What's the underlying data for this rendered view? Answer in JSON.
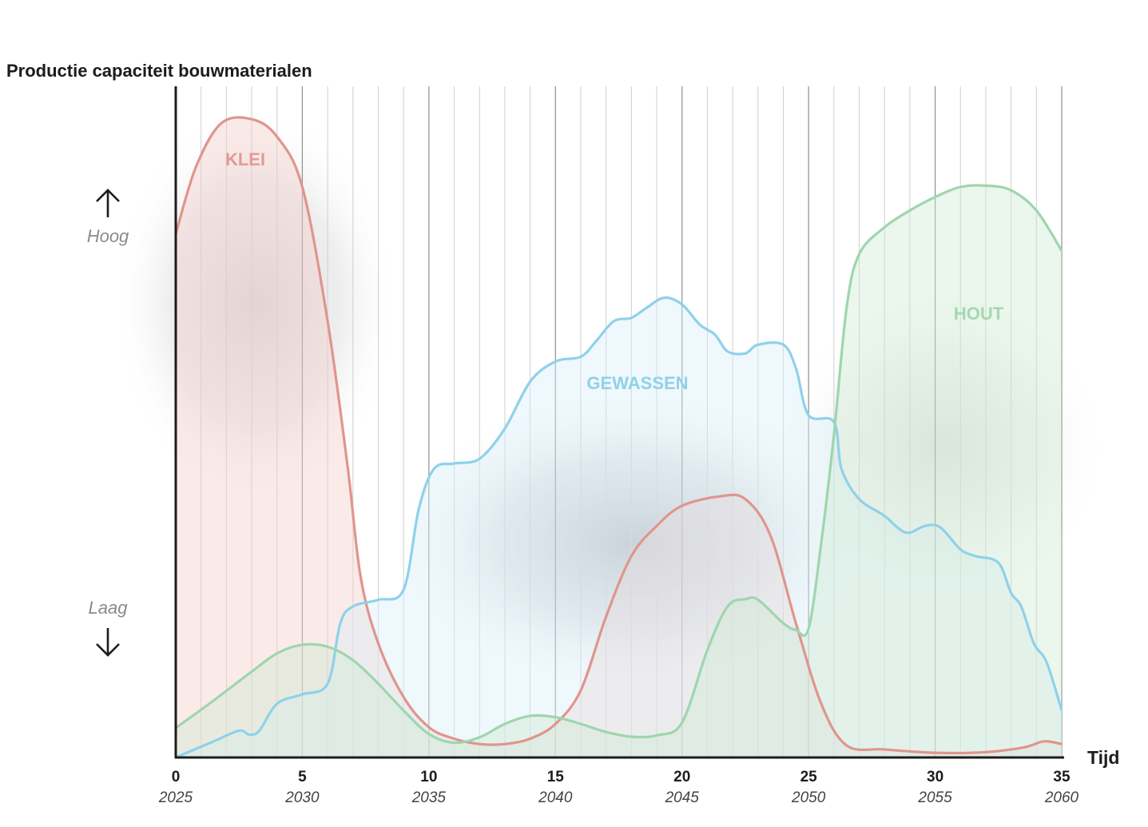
{
  "chart_data": {
    "type": "area",
    "title": "Productie capaciteit bouwmaterialen",
    "xlabel": "Tijd",
    "ylabel": "",
    "xlim": [
      0,
      35
    ],
    "ylim": [
      0,
      100
    ],
    "grid": "vertical",
    "x_ticks": [
      0,
      5,
      10,
      15,
      20,
      25,
      30,
      35
    ],
    "x_tick_years": [
      "2025",
      "2030",
      "2035",
      "2040",
      "2045",
      "2050",
      "2055",
      "2060"
    ],
    "y_level_labels": {
      "high": "Hoog",
      "low": "Laag"
    },
    "series": [
      {
        "name": "KLEI",
        "color": "#e0958c",
        "fill": "#f3cfcb",
        "points": [
          [
            0,
            78
          ],
          [
            0.8,
            88
          ],
          [
            1.8,
            94.5
          ],
          [
            3,
            95.1
          ],
          [
            4,
            92.5
          ],
          [
            5,
            85
          ],
          [
            6,
            65
          ],
          [
            6.8,
            43
          ],
          [
            7.3,
            27
          ],
          [
            8,
            17
          ],
          [
            9,
            9
          ],
          [
            10,
            4.5
          ],
          [
            11,
            2.8
          ],
          [
            12,
            2
          ],
          [
            13,
            2
          ],
          [
            14,
            2.8
          ],
          [
            15,
            5
          ],
          [
            16,
            10
          ],
          [
            17,
            21
          ],
          [
            18,
            30
          ],
          [
            19,
            34.5
          ],
          [
            20,
            37.5
          ],
          [
            21.5,
            38.9
          ],
          [
            22.5,
            38.5
          ],
          [
            23.5,
            33
          ],
          [
            24.5,
            20
          ],
          [
            25.5,
            8
          ],
          [
            26.5,
            1.8
          ],
          [
            28,
            1.2
          ],
          [
            30,
            0.7
          ],
          [
            32,
            0.8
          ],
          [
            33.5,
            1.5
          ],
          [
            34.3,
            2.4
          ],
          [
            35,
            2
          ]
        ]
      },
      {
        "name": "GEWASSEN",
        "color": "#8fd1ea",
        "fill": "#d9eef9",
        "points": [
          [
            0,
            0
          ],
          [
            1.5,
            2.4
          ],
          [
            2.5,
            4
          ],
          [
            2.9,
            3.4
          ],
          [
            3.3,
            4
          ],
          [
            4,
            8
          ],
          [
            5,
            9.4
          ],
          [
            6,
            11
          ],
          [
            6.5,
            20
          ],
          [
            7,
            22.5
          ],
          [
            8,
            23.5
          ],
          [
            9,
            25
          ],
          [
            9.6,
            37
          ],
          [
            10.2,
            43
          ],
          [
            11,
            43.8
          ],
          [
            12,
            44.5
          ],
          [
            13,
            49
          ],
          [
            14,
            56
          ],
          [
            15,
            59
          ],
          [
            16,
            59.7
          ],
          [
            16.6,
            62
          ],
          [
            17.3,
            65
          ],
          [
            18,
            65.5
          ],
          [
            18.6,
            67
          ],
          [
            19.3,
            68.5
          ],
          [
            20,
            67.5
          ],
          [
            20.7,
            64.5
          ],
          [
            21.3,
            63
          ],
          [
            21.8,
            60.5
          ],
          [
            22.5,
            60.2
          ],
          [
            23,
            61.5
          ],
          [
            24,
            61.5
          ],
          [
            24.5,
            58
          ],
          [
            25,
            51
          ],
          [
            26,
            50
          ],
          [
            26.3,
            43
          ],
          [
            27,
            38.5
          ],
          [
            28,
            36
          ],
          [
            28.6,
            34
          ],
          [
            29,
            33.5
          ],
          [
            29.6,
            34.5
          ],
          [
            30.2,
            34.3
          ],
          [
            31,
            31
          ],
          [
            31.6,
            30
          ],
          [
            32.5,
            29
          ],
          [
            33,
            24.5
          ],
          [
            33.4,
            22.5
          ],
          [
            33.9,
            17
          ],
          [
            34.4,
            14.2
          ],
          [
            35,
            7
          ]
        ]
      },
      {
        "name": "HOUT",
        "color": "#9ed6ad",
        "fill": "#cfe9d5",
        "points": [
          [
            0,
            4.4
          ],
          [
            1.5,
            8.5
          ],
          [
            3,
            12.8
          ],
          [
            4,
            15.5
          ],
          [
            5,
            16.8
          ],
          [
            6,
            16.5
          ],
          [
            7,
            14.5
          ],
          [
            8,
            11
          ],
          [
            9,
            7
          ],
          [
            10,
            3.5
          ],
          [
            11,
            2.2
          ],
          [
            12,
            3
          ],
          [
            13,
            5
          ],
          [
            14,
            6.2
          ],
          [
            15,
            6
          ],
          [
            16,
            5
          ],
          [
            17,
            3.8
          ],
          [
            18,
            3.1
          ],
          [
            19,
            3.3
          ],
          [
            20,
            5.2
          ],
          [
            21,
            16
          ],
          [
            21.8,
            22.5
          ],
          [
            22.5,
            23.6
          ],
          [
            23,
            23.5
          ],
          [
            24,
            20
          ],
          [
            24.5,
            19
          ],
          [
            25,
            19.2
          ],
          [
            25.5,
            32
          ],
          [
            26,
            48
          ],
          [
            26.5,
            67
          ],
          [
            27,
            75
          ],
          [
            28,
            79
          ],
          [
            29,
            81.5
          ],
          [
            30,
            83.5
          ],
          [
            31,
            85
          ],
          [
            32,
            85.2
          ],
          [
            33,
            84.5
          ],
          [
            34,
            81.5
          ],
          [
            35,
            75.5
          ]
        ]
      }
    ]
  },
  "labels": {
    "klei": "KLEI",
    "gewassen": "GEWASSEN",
    "hout": "HOUT",
    "high": "Hoog",
    "low": "Laag"
  }
}
